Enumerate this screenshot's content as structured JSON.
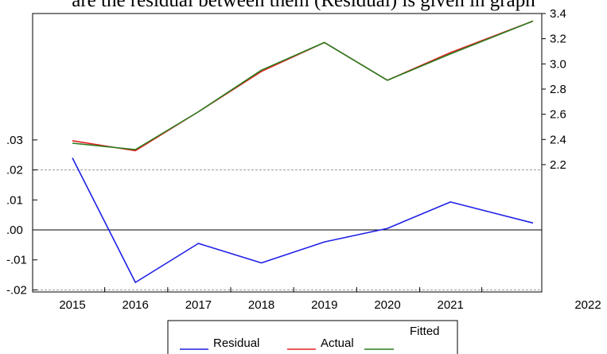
{
  "caption_fragment": "are the residual between them (Residual) is given in graph",
  "chart_data": {
    "type": "line",
    "title": "",
    "xlabel": "",
    "x_tick_labels": [
      "2015",
      "2016",
      "2017",
      "2018",
      "2019",
      "2020",
      "2021",
      "2022"
    ],
    "left_axis": {
      "ticks": [
        0.03,
        0.02,
        0.01,
        0.0,
        -0.01,
        -0.02
      ],
      "tick_labels": [
        ".03",
        ".02",
        ".01",
        ".00",
        "-.01",
        "-.02"
      ],
      "range": [
        -0.02,
        0.03
      ]
    },
    "right_axis": {
      "ticks": [
        3.4,
        3.2,
        3.0,
        2.8,
        2.6,
        2.4,
        2.2
      ],
      "tick_labels": [
        "3.4",
        "3.2",
        "3.0",
        "2.8",
        "2.6",
        "2.4",
        "2.2"
      ],
      "range": [
        2.2,
        3.4
      ]
    },
    "x": [
      2015,
      2016,
      2017,
      2018,
      2019,
      2020,
      2021,
      2022
    ],
    "series": [
      {
        "name": "Residual",
        "axis": "left",
        "color": "#1f1fe6",
        "values": [
          0.024,
          -0.0175,
          -0.0045,
          -0.011,
          -0.004,
          0.0005,
          0.0093,
          0.0023
        ]
      },
      {
        "name": "Actual",
        "axis": "right",
        "color": "#e62020",
        "values": [
          2.39,
          2.31,
          2.62,
          2.94,
          3.17,
          2.87,
          3.09,
          3.34
        ]
      },
      {
        "name": "Fitted",
        "axis": "right",
        "color": "#2a7d1f",
        "values": [
          2.37,
          2.32,
          2.62,
          2.95,
          3.17,
          2.87,
          3.08,
          3.34
        ]
      }
    ],
    "grid": {
      "horizontal_reference_lines": [
        0.02,
        0.0,
        -0.02
      ]
    },
    "legend": {
      "placement": "bottom-center"
    }
  }
}
